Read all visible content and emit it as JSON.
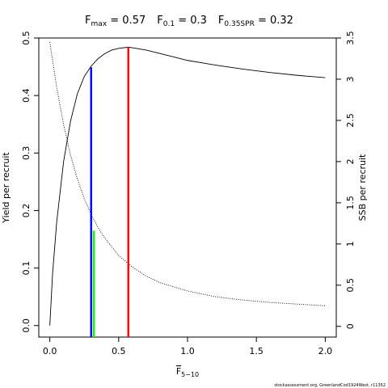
{
  "chart_data": {
    "type": "line",
    "title_parts": [
      {
        "main": "F",
        "sub": "max",
        "rest": " = 0.57"
      },
      {
        "main": "F",
        "sub": "0.1",
        "rest": " = 0.3"
      },
      {
        "main": "F",
        "sub": "0.35SPR",
        "rest": " = 0.32"
      }
    ],
    "xlabel": {
      "main": "F",
      "sub": "5−10"
    },
    "ylabel_left": "Yield per recruit",
    "ylabel_right": "SSB per recruit",
    "xlim": [
      -0.08,
      2.08
    ],
    "ylim_left": [
      -0.02,
      0.5
    ],
    "ylim_right": [
      -0.13,
      3.5
    ],
    "x_ticks": [
      0,
      0.5,
      1,
      1.5,
      2
    ],
    "x_tick_labels": [
      "0.0",
      "0.5",
      "1.0",
      "1.5",
      "2.0"
    ],
    "y_left_ticks": [
      0,
      0.1,
      0.2,
      0.3,
      0.4,
      0.5
    ],
    "y_left_tick_labels": [
      "0.0",
      "0.1",
      "0.2",
      "0.3",
      "0.4",
      "0.5"
    ],
    "y_right_ticks": [
      0,
      0.5,
      1,
      1.5,
      2,
      2.5,
      3,
      3.5
    ],
    "y_right_tick_labels": [
      "0",
      "0.5",
      "1",
      "1.5",
      "2",
      "2.5",
      "3",
      "3.5"
    ],
    "series": [
      {
        "axis": "left",
        "style": "solid",
        "color": "#000000",
        "x": [
          0,
          0.02,
          0.05,
          0.1,
          0.15,
          0.2,
          0.25,
          0.3,
          0.35,
          0.4,
          0.45,
          0.5,
          0.57,
          0.6,
          0.7,
          0.8,
          0.9,
          1.0,
          1.2,
          1.4,
          1.6,
          1.8,
          2.0
        ],
        "values": [
          0.0,
          0.09,
          0.18,
          0.285,
          0.355,
          0.403,
          0.433,
          0.451,
          0.464,
          0.473,
          0.479,
          0.482,
          0.484,
          0.483,
          0.479,
          0.473,
          0.467,
          0.461,
          0.453,
          0.446,
          0.44,
          0.435,
          0.431
        ]
      },
      {
        "axis": "right",
        "style": "dotted",
        "color": "#000000",
        "x": [
          0,
          0.05,
          0.1,
          0.15,
          0.2,
          0.25,
          0.3,
          0.35,
          0.4,
          0.5,
          0.6,
          0.7,
          0.8,
          1.0,
          1.2,
          1.4,
          1.6,
          1.8,
          2.0
        ],
        "values": [
          3.45,
          2.9,
          2.45,
          2.08,
          1.79,
          1.55,
          1.36,
          1.2,
          1.07,
          0.86,
          0.72,
          0.61,
          0.53,
          0.43,
          0.36,
          0.32,
          0.29,
          0.27,
          0.25
        ]
      }
    ],
    "reference_lines": [
      {
        "name": "F0.1",
        "x": 0.3,
        "axis": "left",
        "y_top": 0.449,
        "color": "#0000ff"
      },
      {
        "name": "F0.35SPR",
        "x": 0.32,
        "axis": "left",
        "y_top": 0.165,
        "color": "#00ff00"
      },
      {
        "name": "Fmax",
        "x": 0.57,
        "axis": "left",
        "y_top": 0.484,
        "color": "#ff0000"
      }
    ],
    "footer": "stockassessment.org, GreenlandCod1924West, r11352"
  }
}
